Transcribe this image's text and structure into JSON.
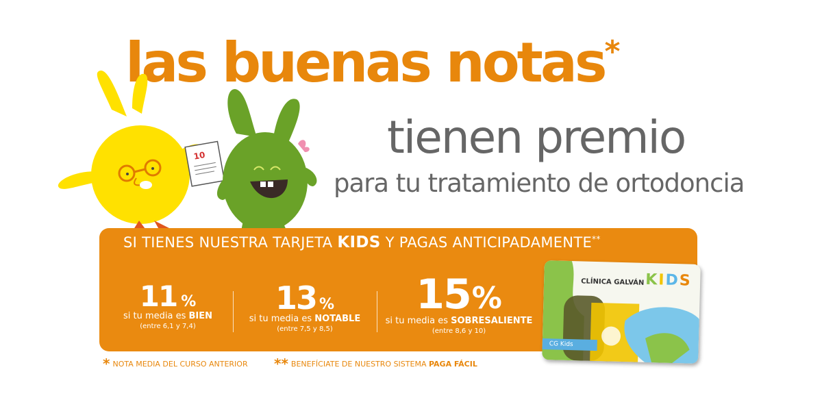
{
  "headline": {
    "text": "las buenas notas",
    "asterisk": "*"
  },
  "subheadline": {
    "line1": "tienen premio",
    "line2": "para tu tratamiento de ortodoncia"
  },
  "paper_grade": "10",
  "banner": {
    "title_pre": "SI TIENES NUESTRA TARJETA",
    "title_bold": "KIDS",
    "title_post": "Y PAGAS ANTICIPADAMENTE",
    "title_mark": "**",
    "discounts": [
      {
        "percent": "11",
        "sign": "%",
        "prefix": "si tu media es",
        "grade": "BIEN",
        "range": "(entre 6,1 y 7,4)"
      },
      {
        "percent": "13",
        "sign": "%",
        "prefix": "si tu media es",
        "grade": "NOTABLE",
        "range": "(entre 7,5 y 8,5)"
      },
      {
        "percent": "15",
        "sign": "%",
        "prefix": "si tu media es",
        "grade": "SOBRESALIENTE",
        "range": "(entre 8,6 y 10)"
      }
    ]
  },
  "footnotes": [
    {
      "mark": "*",
      "text": "NOTA MEDIA DEL CURSO ANTERIOR",
      "bold": ""
    },
    {
      "mark": "**",
      "text": "BENEFÍCIATE DE NUESTRO SISTEMA",
      "bold": "PAGA FÁCIL"
    }
  ],
  "card": {
    "brand": "CLÍNICA GALVÁN",
    "kids_letters": [
      "K",
      "I",
      "D",
      "S"
    ],
    "tag": "CG Kids"
  },
  "colors": {
    "orange": "#e8870c",
    "gray_text": "#666666",
    "yellow_character": "#ffe100",
    "green_character": "#6aa228"
  }
}
